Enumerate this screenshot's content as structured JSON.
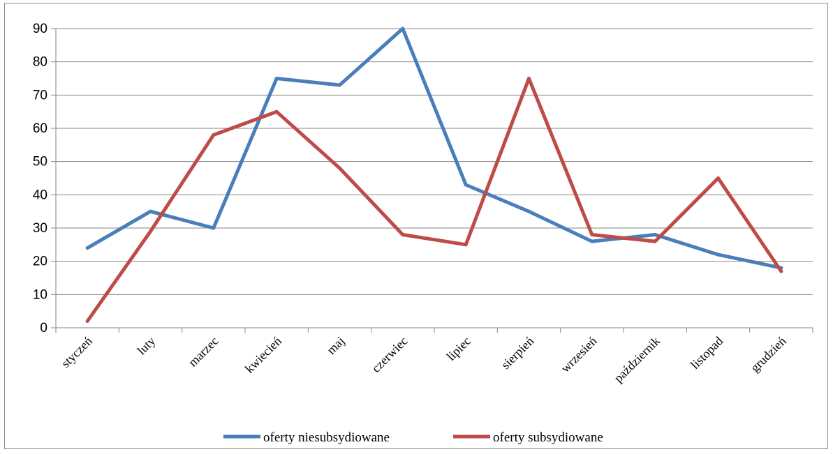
{
  "chart_data": {
    "type": "line",
    "categories": [
      "styczeń",
      "luty",
      "marzec",
      "kwiecień",
      "maj",
      "czerwiec",
      "lipiec",
      "sierpień",
      "wrzesień",
      "październik",
      "listopad",
      "grudzień"
    ],
    "series": [
      {
        "name": "oferty niesubsydiowane",
        "color": "#4a7ebb",
        "values": [
          24,
          35,
          30,
          75,
          73,
          90,
          43,
          35,
          26,
          28,
          22,
          18
        ]
      },
      {
        "name": "oferty subsydiowane",
        "color": "#be4b48",
        "values": [
          2,
          29,
          58,
          65,
          48,
          28,
          25,
          75,
          28,
          26,
          45,
          17
        ]
      }
    ],
    "yticks": [
      "0",
      "10",
      "20",
      "30",
      "40",
      "50",
      "60",
      "70",
      "80",
      "90"
    ],
    "ylim": [
      0,
      90
    ],
    "grid": true,
    "legend_position": "bottom"
  }
}
